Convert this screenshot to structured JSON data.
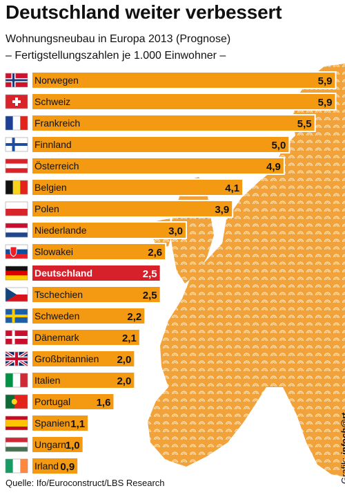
{
  "title": "Deutschland weiter verbessert",
  "subtitle1": "Wohnungsneubau in Europa 2013 (Prognose)",
  "subtitle2": "– Fertigstellungszahlen je 1.000 Einwohner –",
  "source": "Quelle: Ifo/Euroconstruct/LBS Research",
  "credit_prefix": "Grafik: ",
  "credit_brand": "infoch@rt.",
  "colors": {
    "bar": "#f39a12",
    "highlight": "#d6202a",
    "map": "#f2a23a",
    "background": "#ffffff"
  },
  "chart_data": {
    "type": "bar",
    "orientation": "horizontal",
    "title": "Deutschland weiter verbessert",
    "subtitle": "Wohnungsneubau in Europa 2013 (Prognose) – Fertigstellungszahlen je 1.000 Einwohner –",
    "categories": [
      "Norwegen",
      "Schweiz",
      "Frankreich",
      "Finnland",
      "Österreich",
      "Belgien",
      "Polen",
      "Niederlande",
      "Slowakei",
      "Deutschland",
      "Tschechien",
      "Schweden",
      "Dänemark",
      "Großbritannien",
      "Italien",
      "Portugal",
      "Spanien",
      "Ungarn",
      "Irland"
    ],
    "values": [
      5.9,
      5.9,
      5.5,
      5.0,
      4.9,
      4.1,
      3.9,
      3.0,
      2.6,
      2.5,
      2.5,
      2.2,
      2.1,
      2.0,
      2.0,
      1.6,
      1.1,
      1.0,
      0.9
    ],
    "value_labels": [
      "5,9",
      "5,9",
      "5,5",
      "5,0",
      "4,9",
      "4,1",
      "3,9",
      "3,0",
      "2,6",
      "2,5",
      "2,5",
      "2,2",
      "2,1",
      "2,0",
      "2,0",
      "1,6",
      "1,1",
      "1,0",
      "0,9"
    ],
    "flag_icons": [
      "flag-norway-icon",
      "flag-switzerland-icon",
      "flag-france-icon",
      "flag-finland-icon",
      "flag-austria-icon",
      "flag-belgium-icon",
      "flag-poland-icon",
      "flag-netherlands-icon",
      "flag-slovakia-icon",
      "flag-germany-icon",
      "flag-czechia-icon",
      "flag-sweden-icon",
      "flag-denmark-icon",
      "flag-uk-icon",
      "flag-italy-icon",
      "flag-portugal-icon",
      "flag-spain-icon",
      "flag-hungary-icon",
      "flag-ireland-icon"
    ],
    "highlight": "Deutschland",
    "grid": false,
    "legend": "none"
  }
}
